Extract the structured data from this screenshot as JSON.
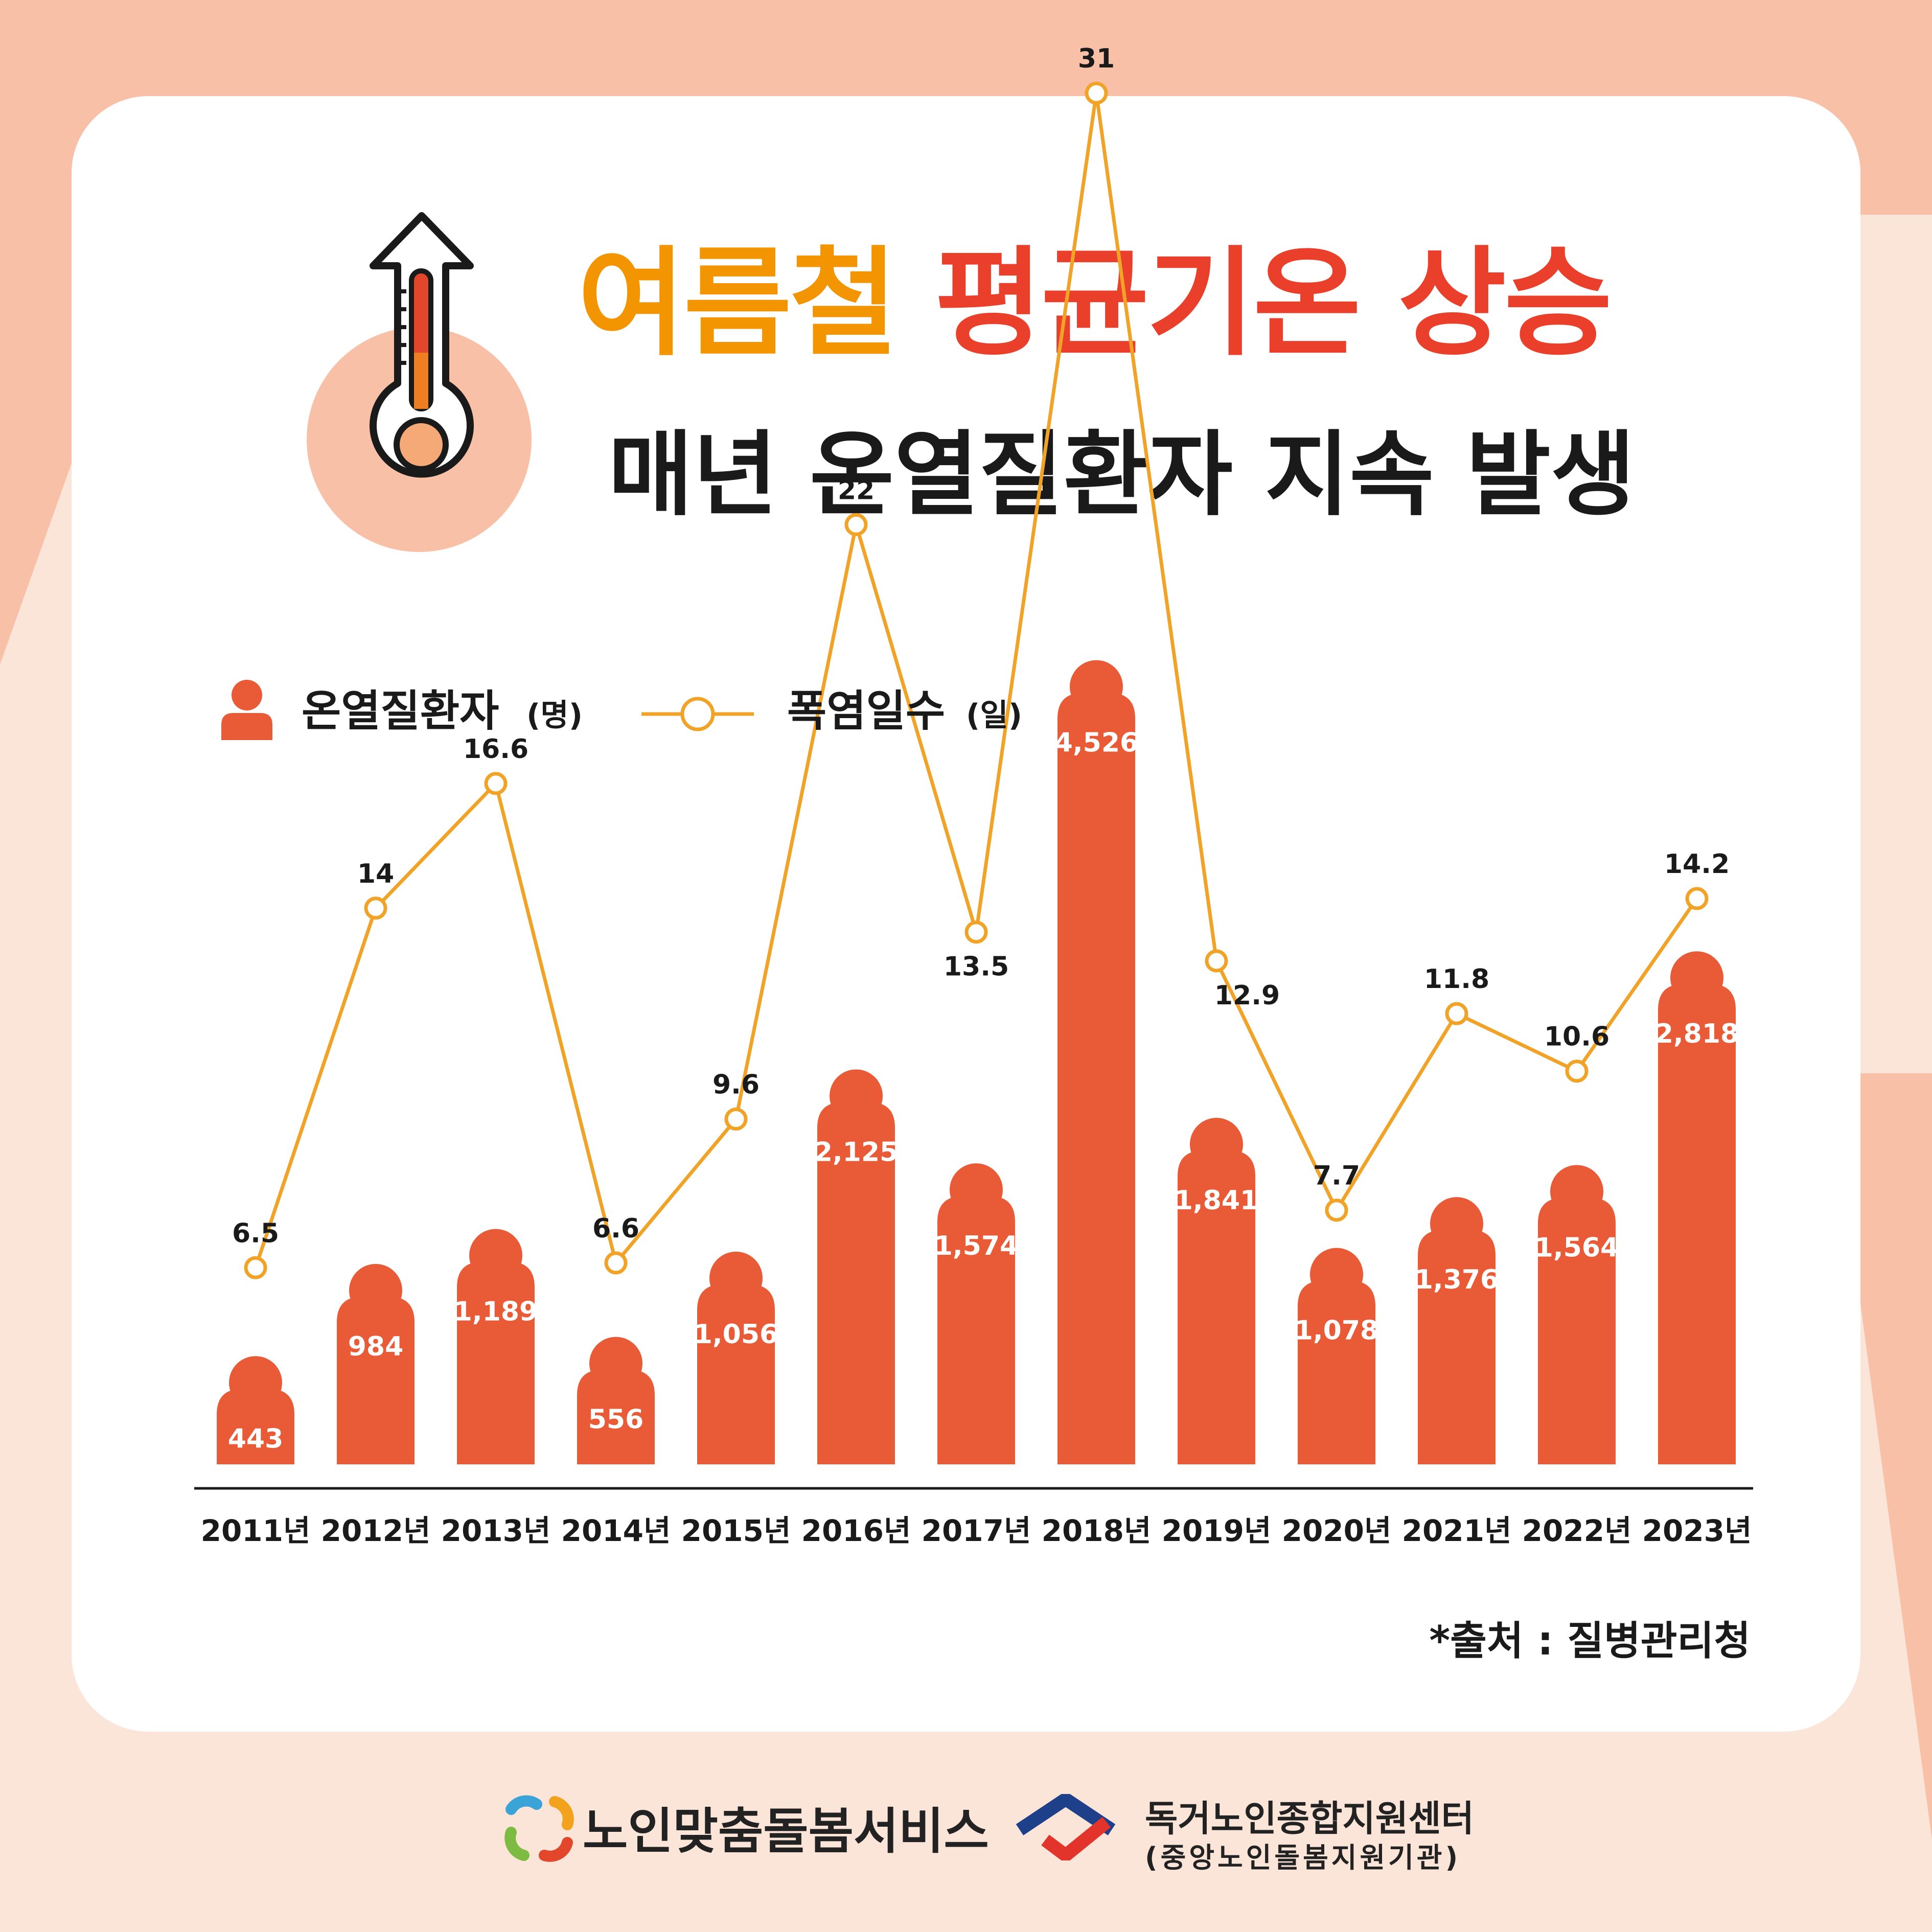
{
  "title": {
    "part1": "여름철",
    "part2": "평균기온 상승",
    "subtitle": "매년 온열질환자 지속 발생"
  },
  "colors": {
    "bar": "#e95a37",
    "line": "#f0a326",
    "title_orange": "#f39500",
    "title_red": "#ea3f2a",
    "background": "#fbe4d8",
    "card": "#ffffff"
  },
  "icons": {
    "header": "thermometer-rising-icon",
    "legend_bar": "person-icon",
    "legend_line": "circle-marker-icon"
  },
  "chart_data": {
    "type": "bar",
    "categories": [
      "2011년",
      "2012년",
      "2013년",
      "2014년",
      "2015년",
      "2016년",
      "2017년",
      "2018년",
      "2019년",
      "2020년",
      "2021년",
      "2022년",
      "2023년"
    ],
    "series": [
      {
        "name": "온열질환자(명)",
        "type": "bar",
        "values": [
          443,
          984,
          1189,
          556,
          1056,
          2125,
          1574,
          4526,
          1841,
          1078,
          1376,
          1564,
          2818
        ],
        "labels": [
          "443",
          "984",
          "1,189",
          "556",
          "1,056",
          "2,125",
          "1,574",
          "4,526",
          "1,841",
          "1,078",
          "1,376",
          "1,564",
          "2,818"
        ]
      },
      {
        "name": "폭염일수(일)",
        "type": "line",
        "values": [
          6.5,
          14,
          16.6,
          6.6,
          9.6,
          22,
          13.5,
          31,
          12.9,
          7.7,
          11.8,
          10.6,
          14.2
        ],
        "labels": [
          "6.5",
          "14",
          "16.6",
          "6.6",
          "9.6",
          "22",
          "13.5",
          "31",
          "12.9",
          "7.7",
          "11.8",
          "10.6",
          "14.2"
        ]
      }
    ],
    "legend": {
      "position": "top-left",
      "items": [
        {
          "label": "온열질환자",
          "unit": "(명)"
        },
        {
          "label": "폭염일수",
          "unit": "(일)"
        }
      ]
    },
    "grid": false
  },
  "source": "*출처 : 질병관리청",
  "footer": {
    "logo1_text": "노인맞춤돌봄서비스",
    "logo2_line1": "독거노인종합지원센터",
    "logo2_line2": "(중앙노인돌봄지원기관)"
  }
}
